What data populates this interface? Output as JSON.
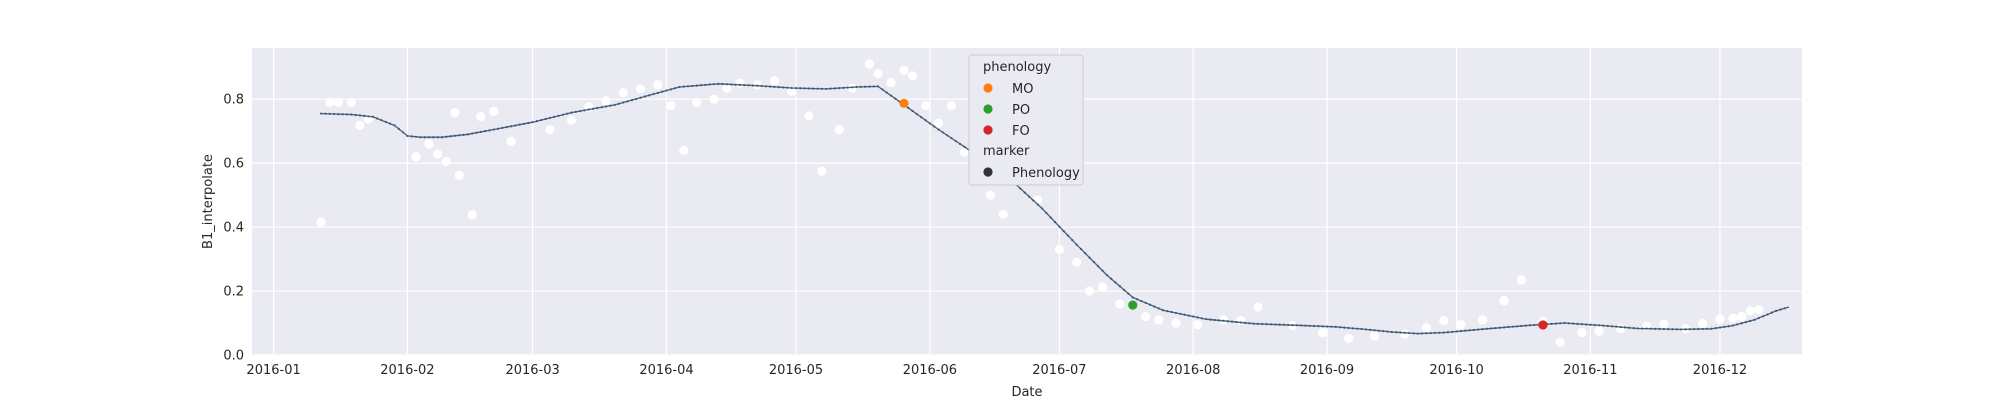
{
  "chart_data": {
    "type": "line",
    "xlabel": "Date",
    "ylabel": "B1_interpolate",
    "xlim": [
      "2015-12-27",
      "2016-12-20"
    ],
    "ylim": [
      0.0,
      0.96
    ],
    "grid": true,
    "x_ticks": [
      "2016-01-01",
      "2016-02-01",
      "2016-03-01",
      "2016-04-01",
      "2016-05-01",
      "2016-06-01",
      "2016-07-01",
      "2016-08-01",
      "2016-09-01",
      "2016-10-01",
      "2016-11-01",
      "2016-12-01"
    ],
    "x_tick_labels": [
      "2016-01",
      "2016-02",
      "2016-03",
      "2016-04",
      "2016-05",
      "2016-06",
      "2016-07",
      "2016-08",
      "2016-09",
      "2016-10",
      "2016-11",
      "2016-12"
    ],
    "y_ticks": [
      0.0,
      0.2,
      0.4,
      0.6,
      0.8
    ],
    "y_tick_labels": [
      "0.0",
      "0.2",
      "0.4",
      "0.6",
      "0.8"
    ],
    "colors": {
      "background": "#eaeaf2",
      "grid": "#ffffff",
      "line": "#4c5f73",
      "raw_points": "#ffffff",
      "MO": "#ff7f0e",
      "PO": "#2ca02c",
      "FO": "#d62728",
      "marker_legend": "#333333"
    },
    "series": [
      {
        "kind": "line",
        "points": [
          [
            "2016-01-12",
            0.755
          ],
          [
            "2016-01-20",
            0.752
          ],
          [
            "2016-01-25",
            0.745
          ],
          [
            "2016-01-30",
            0.718
          ],
          [
            "2016-02-02",
            0.682
          ],
          [
            "2016-02-10",
            0.68
          ],
          [
            "2016-02-16",
            0.695
          ],
          [
            "2016-02-25",
            0.715
          ],
          [
            "2016-03-05",
            0.735
          ],
          [
            "2016-03-12",
            0.762
          ],
          [
            "2016-03-22",
            0.785
          ],
          [
            "2016-03-30",
            0.812
          ],
          [
            "2016-04-06",
            0.84
          ],
          [
            "2016-04-14",
            0.848
          ],
          [
            "2016-04-24",
            0.842
          ],
          [
            "2016-05-01",
            0.835
          ],
          [
            "2016-05-09",
            0.832
          ],
          [
            "2016-05-17",
            0.838
          ],
          [
            "2016-05-22",
            0.838
          ],
          [
            "2016-05-27",
            0.785
          ],
          [
            "2016-06-04",
            0.7
          ],
          [
            "2016-06-14",
            0.61
          ],
          [
            "2016-06-21",
            0.54
          ],
          [
            "2016-06-28",
            0.455
          ],
          [
            "2016-07-05",
            0.34
          ],
          [
            "2016-07-14",
            0.238
          ],
          [
            "2016-07-21",
            0.175
          ],
          [
            "2016-07-29",
            0.132
          ],
          [
            "2016-08-07",
            0.108
          ],
          [
            "2016-08-17",
            0.097
          ],
          [
            "2016-08-26",
            0.093
          ],
          [
            "2016-09-03",
            0.088
          ],
          [
            "2016-09-10",
            0.08
          ],
          [
            "2016-09-16",
            0.072
          ],
          [
            "2016-09-22",
            0.068
          ],
          [
            "2016-09-30",
            0.075
          ],
          [
            "2016-10-12",
            0.087
          ],
          [
            "2016-10-23",
            0.098
          ],
          [
            "2016-10-30",
            0.1
          ],
          [
            "2016-11-06",
            0.09
          ],
          [
            "2016-11-15",
            0.082
          ],
          [
            "2016-11-26",
            0.08
          ],
          [
            "2016-12-01",
            0.083
          ],
          [
            "2016-12-07",
            0.095
          ],
          [
            "2016-12-12",
            0.118
          ],
          [
            "2016-12-17",
            0.148
          ]
        ]
      }
    ],
    "line_points": [
      [
        "2016-01-12",
        0.755
      ],
      [
        "2016-01-19",
        0.752
      ],
      [
        "2016-01-24",
        0.745
      ],
      [
        "2016-01-29",
        0.718
      ],
      [
        "2016-02-01",
        0.685
      ],
      [
        "2016-02-04",
        0.681
      ],
      [
        "2016-02-09",
        0.681
      ],
      [
        "2016-02-15",
        0.69
      ],
      [
        "2016-02-21",
        0.705
      ],
      [
        "2016-03-01",
        0.728
      ],
      [
        "2016-03-10",
        0.758
      ],
      [
        "2016-03-20",
        0.782
      ],
      [
        "2016-03-28",
        0.812
      ],
      [
        "2016-04-04",
        0.838
      ],
      [
        "2016-04-13",
        0.848
      ],
      [
        "2016-04-22",
        0.842
      ],
      [
        "2016-04-30",
        0.835
      ],
      [
        "2016-05-08",
        0.832
      ],
      [
        "2016-05-15",
        0.838
      ],
      [
        "2016-05-20",
        0.84
      ],
      [
        "2016-05-25",
        0.792
      ],
      [
        "2016-06-03",
        0.705
      ],
      [
        "2016-06-13",
        0.615
      ],
      [
        "2016-06-20",
        0.545
      ],
      [
        "2016-06-27",
        0.458
      ],
      [
        "2016-07-05",
        0.345
      ],
      [
        "2016-07-12",
        0.25
      ],
      [
        "2016-07-18",
        0.18
      ],
      [
        "2016-07-25",
        0.14
      ],
      [
        "2016-08-04",
        0.112
      ],
      [
        "2016-08-15",
        0.098
      ],
      [
        "2016-08-25",
        0.093
      ],
      [
        "2016-09-03",
        0.088
      ],
      [
        "2016-09-10",
        0.08
      ],
      [
        "2016-09-16",
        0.072
      ],
      [
        "2016-09-22",
        0.067
      ],
      [
        "2016-09-28",
        0.07
      ],
      [
        "2016-10-08",
        0.082
      ],
      [
        "2016-10-18",
        0.093
      ],
      [
        "2016-10-26",
        0.1
      ],
      [
        "2016-11-04",
        0.092
      ],
      [
        "2016-11-12",
        0.083
      ],
      [
        "2016-11-22",
        0.08
      ],
      [
        "2016-11-29",
        0.082
      ],
      [
        "2016-12-04",
        0.092
      ],
      [
        "2016-12-09",
        0.11
      ],
      [
        "2016-12-14",
        0.138
      ],
      [
        "2016-12-17",
        0.15
      ]
    ],
    "raw_points": [
      [
        "2016-01-12",
        0.415
      ],
      [
        "2016-01-14",
        0.79
      ],
      [
        "2016-01-16",
        0.79
      ],
      [
        "2016-01-19",
        0.79
      ],
      [
        "2016-01-21",
        0.718
      ],
      [
        "2016-01-23",
        0.738
      ],
      [
        "2016-02-03",
        0.62
      ],
      [
        "2016-02-06",
        0.66
      ],
      [
        "2016-02-08",
        0.628
      ],
      [
        "2016-02-10",
        0.605
      ],
      [
        "2016-02-13",
        0.562
      ],
      [
        "2016-02-16",
        0.438
      ],
      [
        "2016-02-12",
        0.758
      ],
      [
        "2016-02-18",
        0.746
      ],
      [
        "2016-02-21",
        0.762
      ],
      [
        "2016-02-25",
        0.668
      ],
      [
        "2016-03-05",
        0.705
      ],
      [
        "2016-03-10",
        0.735
      ],
      [
        "2016-03-14",
        0.775
      ],
      [
        "2016-03-18",
        0.795
      ],
      [
        "2016-03-22",
        0.82
      ],
      [
        "2016-03-26",
        0.832
      ],
      [
        "2016-03-30",
        0.845
      ],
      [
        "2016-04-02",
        0.78
      ],
      [
        "2016-04-05",
        0.64
      ],
      [
        "2016-04-08",
        0.79
      ],
      [
        "2016-04-12",
        0.8
      ],
      [
        "2016-04-15",
        0.835
      ],
      [
        "2016-04-18",
        0.85
      ],
      [
        "2016-04-22",
        0.845
      ],
      [
        "2016-04-26",
        0.858
      ],
      [
        "2016-04-30",
        0.825
      ],
      [
        "2016-05-04",
        0.748
      ],
      [
        "2016-05-07",
        0.575
      ],
      [
        "2016-05-11",
        0.705
      ],
      [
        "2016-05-14",
        0.835
      ],
      [
        "2016-05-18",
        0.91
      ],
      [
        "2016-05-20",
        0.88
      ],
      [
        "2016-05-23",
        0.852
      ],
      [
        "2016-05-26",
        0.89
      ],
      [
        "2016-05-28",
        0.873
      ],
      [
        "2016-05-31",
        0.78
      ],
      [
        "2016-06-03",
        0.725
      ],
      [
        "2016-06-06",
        0.78
      ],
      [
        "2016-06-09",
        0.635
      ],
      [
        "2016-06-12",
        0.64
      ],
      [
        "2016-06-15",
        0.5
      ],
      [
        "2016-06-18",
        0.44
      ],
      [
        "2016-06-22",
        0.56
      ],
      [
        "2016-06-26",
        0.485
      ],
      [
        "2016-07-01",
        0.33
      ],
      [
        "2016-07-05",
        0.29
      ],
      [
        "2016-07-08",
        0.2
      ],
      [
        "2016-07-11",
        0.212
      ],
      [
        "2016-07-15",
        0.16
      ],
      [
        "2016-07-18",
        0.155
      ],
      [
        "2016-07-21",
        0.12
      ],
      [
        "2016-07-24",
        0.11
      ],
      [
        "2016-07-28",
        0.1
      ],
      [
        "2016-08-02",
        0.095
      ],
      [
        "2016-08-08",
        0.11
      ],
      [
        "2016-08-12",
        0.108
      ],
      [
        "2016-08-16",
        0.15
      ],
      [
        "2016-08-24",
        0.092
      ],
      [
        "2016-08-31",
        0.07
      ],
      [
        "2016-09-06",
        0.052
      ],
      [
        "2016-09-12",
        0.06
      ],
      [
        "2016-09-19",
        0.065
      ],
      [
        "2016-09-24",
        0.085
      ],
      [
        "2016-09-28",
        0.108
      ],
      [
        "2016-10-02",
        0.095
      ],
      [
        "2016-10-07",
        0.11
      ],
      [
        "2016-10-12",
        0.17
      ],
      [
        "2016-10-16",
        0.235
      ],
      [
        "2016-10-21",
        0.105
      ],
      [
        "2016-10-25",
        0.04
      ],
      [
        "2016-10-30",
        0.07
      ],
      [
        "2016-11-03",
        0.075
      ],
      [
        "2016-11-08",
        0.082
      ],
      [
        "2016-11-14",
        0.09
      ],
      [
        "2016-11-18",
        0.096
      ],
      [
        "2016-11-23",
        0.082
      ],
      [
        "2016-11-27",
        0.098
      ],
      [
        "2016-12-01",
        0.112
      ],
      [
        "2016-12-04",
        0.115
      ],
      [
        "2016-12-06",
        0.12
      ],
      [
        "2016-12-08",
        0.138
      ],
      [
        "2016-12-10",
        0.142
      ]
    ],
    "phenology_points": [
      {
        "label": "MO",
        "x": "2016-05-26",
        "y": 0.787
      },
      {
        "label": "PO",
        "x": "2016-07-18",
        "y": 0.156
      },
      {
        "label": "FO",
        "x": "2016-10-21",
        "y": 0.094
      }
    ],
    "legend": {
      "placement": "upper center",
      "title_hue": "phenology",
      "hue_entries": [
        "MO",
        "PO",
        "FO"
      ],
      "title_marker": "marker",
      "marker_entries": [
        "Phenology"
      ]
    }
  }
}
